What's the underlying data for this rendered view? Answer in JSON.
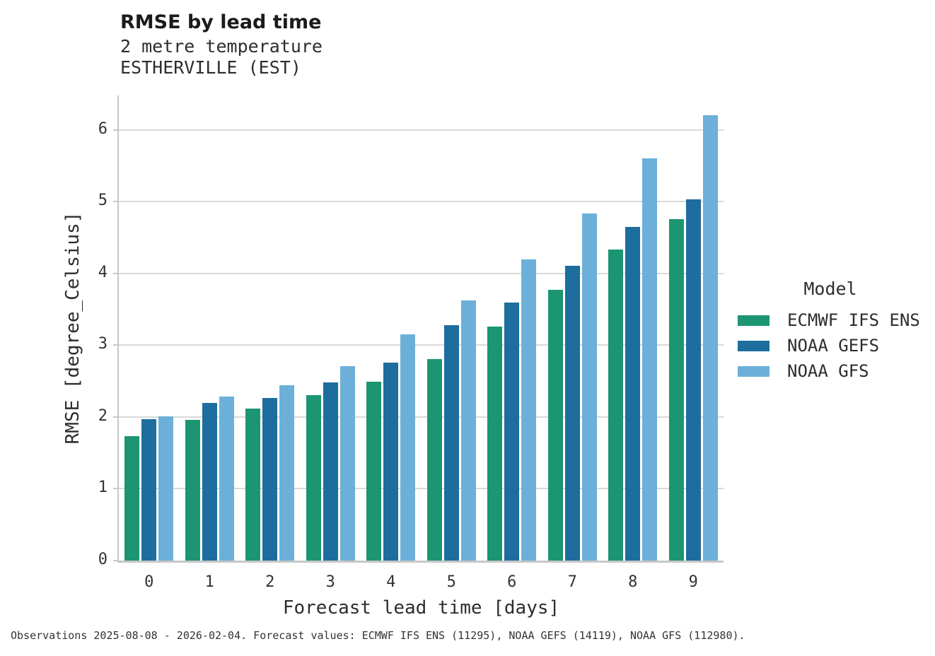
{
  "header": {
    "title": "RMSE by lead time",
    "subtitle_line1": "2 metre temperature",
    "subtitle_line2": "ESTHERVILLE (EST)"
  },
  "axes": {
    "x_label": "Forecast lead time [days]",
    "y_label": "RMSE [degree_Celsius]",
    "x_tick_labels": [
      "0",
      "1",
      "2",
      "3",
      "4",
      "5",
      "6",
      "7",
      "8",
      "9"
    ],
    "y_tick_labels": [
      "0",
      "1",
      "2",
      "3",
      "4",
      "5",
      "6"
    ]
  },
  "legend": {
    "title": "Model",
    "entries": [
      {
        "label": "ECMWF IFS ENS",
        "color": "#1b9572"
      },
      {
        "label": "NOAA GEFS",
        "color": "#1d6d9e"
      },
      {
        "label": "NOAA GFS",
        "color": "#6cb0da"
      }
    ]
  },
  "footer": {
    "caption": "Observations 2025-08-08 - 2026-02-04. Forecast values: ECMWF IFS ENS (11295), NOAA GEFS (14119), NOAA GFS (112980)."
  },
  "colors": {
    "gridline": "#d9d9d9",
    "spine": "#c7c7c7",
    "background": "#ffffff"
  },
  "chart_data": {
    "type": "bar",
    "title": "RMSE by lead time",
    "subtitle": [
      "2 metre temperature",
      "ESTHERVILLE (EST)"
    ],
    "xlabel": "Forecast lead time [days]",
    "ylabel": "RMSE [degree_Celsius]",
    "categories": [
      0,
      1,
      2,
      3,
      4,
      5,
      6,
      7,
      8,
      9
    ],
    "series": [
      {
        "name": "ECMWF IFS ENS",
        "color": "#1b9572",
        "values": [
          1.73,
          1.96,
          2.12,
          2.3,
          2.49,
          2.81,
          3.26,
          3.77,
          4.33,
          4.76
        ]
      },
      {
        "name": "NOAA GEFS",
        "color": "#1d6d9e",
        "values": [
          1.97,
          2.2,
          2.27,
          2.48,
          2.76,
          3.28,
          3.59,
          4.11,
          4.65,
          5.03
        ]
      },
      {
        "name": "NOAA GFS",
        "color": "#6cb0da",
        "values": [
          2.01,
          2.28,
          2.44,
          2.71,
          3.15,
          3.62,
          4.2,
          4.84,
          5.6,
          6.2
        ]
      }
    ],
    "ylim": [
      0,
      6.48
    ],
    "yticks": [
      0,
      1,
      2,
      3,
      4,
      5,
      6
    ],
    "grid": true,
    "legend_title": "Model",
    "legend_position": "right"
  }
}
